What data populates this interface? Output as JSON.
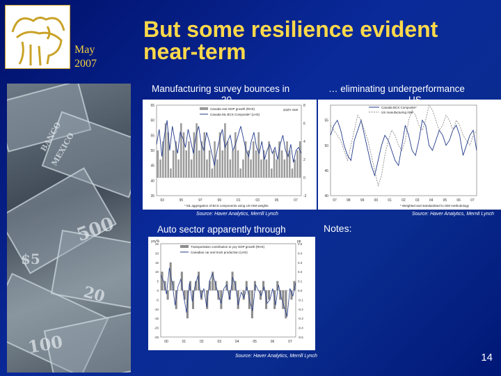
{
  "header": {
    "date_month": "May",
    "date_year": "2007",
    "title_line1": "But some resilience evident",
    "title_line2": "near-term"
  },
  "logo": {
    "icon": "bull-icon"
  },
  "collage": {
    "texts": [
      "BANCO",
      "MEXICO",
      "500",
      "$5",
      "20",
      "100"
    ]
  },
  "charts": {
    "chart1": {
      "title": "Manufacturing survey bounces in",
      "title_clip": "20...",
      "source": "Source: Haver Analytics, Merrill Lynch"
    },
    "chart2": {
      "title": "… eliminating underperformance",
      "title_clip": "US",
      "source": "Source: Haver Analytics, Merrill Lynch"
    },
    "chart3": {
      "title": "Auto sector apparently through",
      "source": "Source: Haver Analytics, Merrill Lynch"
    }
  },
  "notes": {
    "label": "Notes:"
  },
  "footer": {
    "page_number": "14"
  },
  "chart_data": [
    {
      "type": "line",
      "title": "",
      "legend": [
        "Canada real GDP growth (RHS)",
        "Canada ML BCS Composite* (LHS)"
      ],
      "annotation": "qoq% saar",
      "x_ticks": [
        "93",
        "95",
        "97",
        "99",
        "01",
        "03",
        "05",
        "07"
      ],
      "y_left_ticks": [
        35,
        40,
        45,
        50,
        55,
        60,
        65
      ],
      "ylim_left": [
        35,
        65
      ],
      "y_right_ticks": [
        -2,
        0,
        2,
        4,
        6,
        8
      ],
      "ylim_right": [
        -2,
        8
      ],
      "footnote": "* ML aggregation of BCS components using US ISM weights",
      "series": [
        {
          "name": "Canada real GDP growth (RHS)",
          "values": [
            3,
            2,
            4,
            6,
            5,
            1,
            3,
            4,
            2,
            6,
            5,
            3,
            4,
            2,
            5,
            6,
            3,
            4,
            5,
            2,
            3,
            1,
            4,
            2,
            5,
            3,
            6,
            4,
            2,
            3,
            5,
            3,
            1,
            2,
            4,
            3,
            2,
            4,
            3,
            5,
            2,
            3,
            2,
            4,
            1,
            3,
            2,
            4,
            3,
            2,
            4,
            3,
            1,
            2,
            3,
            4
          ]
        },
        {
          "name": "Canada ML BCS Composite* (LHS)",
          "values": [
            52,
            57,
            48,
            55,
            60,
            50,
            58,
            53,
            49,
            56,
            54,
            51,
            57,
            53,
            49,
            55,
            58,
            52,
            50,
            56,
            53,
            49,
            45,
            50,
            54,
            57,
            51,
            53,
            55,
            50,
            52,
            55,
            58,
            54,
            50,
            48,
            53,
            56,
            51,
            49,
            53,
            47,
            50,
            52,
            49,
            51,
            47,
            52,
            55,
            50,
            48,
            52,
            46,
            50,
            51,
            49
          ]
        }
      ]
    },
    {
      "type": "line",
      "title": "",
      "legend": [
        "Canada BCS Composite*",
        "US manufacturing ISM"
      ],
      "x_ticks": [
        "97",
        "98",
        "99",
        "00",
        "01",
        "02",
        "03",
        "04",
        "05",
        "06",
        "07"
      ],
      "y_left_ticks": [
        40,
        45,
        50,
        55
      ],
      "ylim": [
        40,
        58
      ],
      "footnote": "* Weighted and standardised to ISM methodology",
      "series": [
        {
          "name": "Canada BCS Composite*",
          "values": [
            52,
            54,
            55,
            53,
            50,
            48,
            47,
            51,
            53,
            55,
            52,
            49,
            46,
            44,
            47,
            50,
            52,
            51,
            49,
            47,
            46,
            50,
            54,
            52,
            49,
            48,
            51,
            55,
            54,
            50,
            49,
            51,
            53,
            52,
            50,
            51,
            53,
            54,
            52,
            48,
            50,
            52,
            53,
            49
          ]
        },
        {
          "name": "US manufacturing ISM",
          "values": [
            54,
            53,
            52,
            51,
            49,
            47,
            50,
            53,
            56,
            55,
            53,
            51,
            48,
            45,
            42,
            44,
            48,
            51,
            53,
            52,
            50,
            49,
            51,
            55,
            57,
            56,
            54,
            53,
            55,
            58,
            57,
            55,
            53,
            54,
            56,
            55,
            53,
            55,
            54,
            52,
            51,
            50,
            52,
            53
          ]
        }
      ]
    },
    {
      "type": "bar",
      "title": "",
      "legend": [
        "Transportation contribution to yoy GDP growth (RHS)",
        "Canadian car and truck production (LHS)"
      ],
      "y_left_label": "yoy%",
      "y_right_label": "pp",
      "x_ticks": [
        "00",
        "01",
        "02",
        "03",
        "04",
        "05",
        "06",
        "07"
      ],
      "y_left_ticks": [
        -25,
        -20,
        -15,
        -10,
        -5,
        0,
        5,
        10,
        15,
        20,
        25
      ],
      "ylim_left": [
        -25,
        25
      ],
      "y_right_ticks": [
        -0.5,
        -0.4,
        -0.3,
        -0.2,
        -0.1,
        0.0,
        0.1,
        0.2,
        0.3,
        0.4,
        0.5
      ],
      "ylim_right": [
        -0.5,
        0.5
      ],
      "series": [
        {
          "name": "Transportation contribution to yoy GDP growth (RHS)",
          "values": [
            0.2,
            0.1,
            -0.1,
            0.3,
            0.1,
            -0.2,
            0.0,
            0.2,
            -0.1,
            -0.3,
            0.1,
            -0.2,
            0.1,
            0.2,
            -0.1,
            0.0,
            -0.2,
            0.1,
            0.2,
            0.1,
            -0.1,
            -0.2,
            0.0,
            0.1,
            -0.1,
            0.2,
            0.1,
            -0.2,
            0.0,
            -0.1,
            0.1,
            -0.2,
            -0.3,
            0.1,
            0.0,
            -0.1,
            0.1,
            -0.2,
            -0.1,
            0.0,
            -0.2,
            0.1,
            -0.1,
            -0.2,
            -0.3,
            0.0,
            -0.1,
            0.1
          ]
        },
        {
          "name": "Canadian car and truck production (LHS)",
          "values": [
            8,
            5,
            -2,
            12,
            4,
            -8,
            2,
            6,
            -3,
            -12,
            4,
            -6,
            3,
            8,
            -4,
            1,
            -9,
            5,
            9,
            4,
            -2,
            -7,
            1,
            3,
            -5,
            7,
            3,
            -8,
            -1,
            -4,
            2,
            -6,
            -11,
            3,
            0,
            -3,
            2,
            -7,
            -5,
            1,
            -8,
            3,
            -4,
            -9,
            -14,
            1,
            -3,
            4
          ]
        }
      ]
    }
  ]
}
